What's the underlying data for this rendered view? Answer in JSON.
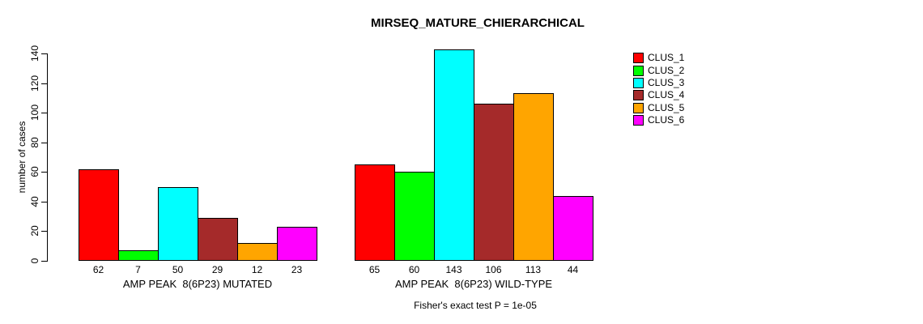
{
  "chart_data": {
    "type": "bar",
    "title": "MIRSEQ_MATURE_CHIERARCHICAL",
    "ylabel": "number of cases",
    "ylim": [
      0,
      140
    ],
    "yticks": [
      0,
      20,
      40,
      60,
      80,
      100,
      120,
      140
    ],
    "categories": [
      "AMP PEAK  8(6P23) MUTATED",
      "AMP PEAK  8(6P23) WILD-TYPE"
    ],
    "series": [
      {
        "name": "CLUS_1",
        "color": "#FF0000",
        "values": [
          62,
          65
        ]
      },
      {
        "name": "CLUS_2",
        "color": "#00FF00",
        "values": [
          7,
          60
        ]
      },
      {
        "name": "CLUS_3",
        "color": "#00FFFF",
        "values": [
          50,
          143
        ]
      },
      {
        "name": "CLUS_4",
        "color": "#A52A2A",
        "values": [
          29,
          106
        ]
      },
      {
        "name": "CLUS_5",
        "color": "#FFA500",
        "values": [
          12,
          113
        ]
      },
      {
        "name": "CLUS_6",
        "color": "#FF00FF",
        "values": [
          23,
          44
        ]
      }
    ],
    "bar_value_labels": [
      [
        62,
        7,
        50,
        29,
        12,
        23
      ],
      [
        65,
        60,
        143,
        106,
        113,
        44
      ]
    ],
    "legend_position": "right",
    "legend_entries": [
      "CLUS_1",
      "CLUS_2",
      "CLUS_3",
      "CLUS_4",
      "CLUS_5",
      "CLUS_6"
    ],
    "grid": "off",
    "annotation": "Fisher's exact test P = 1e-05"
  }
}
